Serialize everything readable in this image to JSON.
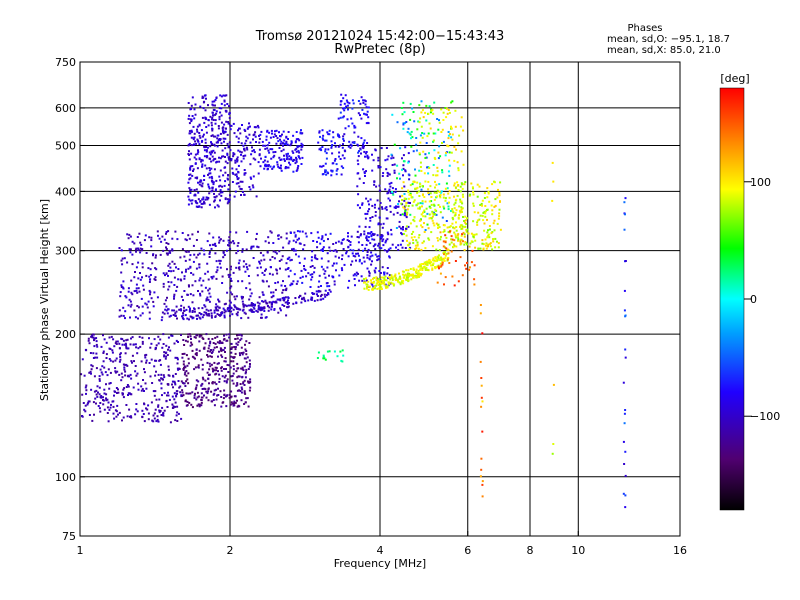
{
  "chart_data": {
    "type": "scatter",
    "title": "Tromsø 20121024 15:42:00−15:43:43",
    "subtitle": "RwPretec (8p)",
    "xlabel": "Frequency [MHz]",
    "ylabel": "Stationary phase Virtual Height [km]",
    "x_scale": "log",
    "y_scale": "log",
    "xlim": [
      1,
      16
    ],
    "ylim": [
      75,
      750
    ],
    "x_ticks": [
      1,
      2,
      4,
      6,
      8,
      10,
      16
    ],
    "x_tick_labels": [
      "1",
      "2",
      "4",
      "6",
      "8",
      "10",
      "16"
    ],
    "x_grid": [
      2,
      4,
      6,
      8,
      10
    ],
    "y_ticks": [
      75,
      100,
      200,
      300,
      400,
      500,
      600,
      750
    ],
    "y_tick_labels": [
      "75",
      "100",
      "200",
      "300",
      "400",
      "500",
      "600",
      "750"
    ],
    "y_grid": [
      100,
      200,
      300,
      400,
      500,
      600
    ],
    "grid": true,
    "colorbar": {
      "label": "[deg]",
      "range": [
        -180,
        180
      ],
      "ticks": [
        -100,
        0,
        100
      ],
      "tick_labels": [
        "−100",
        "0",
        "100"
      ],
      "colors": [
        "#000000",
        "#500070",
        "#2000ff",
        "#00a0ff",
        "#00ffff",
        "#00ff00",
        "#ffff00",
        "#ff8000",
        "#ff0000"
      ]
    },
    "stats_box": {
      "title": "Phases",
      "line1": "mean, sd,O: −95.1, 18.7",
      "line2": "mean, sd,X:  85.0, 21.0"
    },
    "series": [
      {
        "kind": "band",
        "x_range": [
          1.0,
          1.6
        ],
        "y_range": [
          130,
          200
        ],
        "count": 420,
        "phase": [
          -120,
          -100
        ]
      },
      {
        "kind": "band",
        "x_range": [
          1.6,
          2.2
        ],
        "y_range": [
          140,
          200
        ],
        "count": 380,
        "phase": [
          -140,
          -115
        ]
      },
      {
        "kind": "band",
        "x_range": [
          1.2,
          2.6
        ],
        "y_range": [
          215,
          330
        ],
        "count": 520,
        "phase": [
          -120,
          -90
        ]
      },
      {
        "kind": "trace",
        "x_from": 1.45,
        "x_to": 3.2,
        "y_from": 220,
        "y_to": 245,
        "spread": 6,
        "count": 220,
        "phase": [
          -115,
          -90
        ]
      },
      {
        "kind": "band",
        "x_range": [
          1.65,
          2.0
        ],
        "y_range": [
          370,
          640
        ],
        "count": 380,
        "phase": [
          -110,
          -85
        ]
      },
      {
        "kind": "band",
        "x_range": [
          2.0,
          2.3
        ],
        "y_range": [
          390,
          560
        ],
        "count": 120,
        "phase": [
          -110,
          -85
        ]
      },
      {
        "kind": "band",
        "x_range": [
          2.3,
          2.8
        ],
        "y_range": [
          440,
          540
        ],
        "count": 160,
        "phase": [
          -100,
          -70
        ]
      },
      {
        "kind": "band",
        "x_range": [
          3.0,
          3.4
        ],
        "y_range": [
          430,
          540
        ],
        "count": 70,
        "phase": [
          -90,
          -60
        ]
      },
      {
        "kind": "band",
        "x_range": [
          3.3,
          3.8
        ],
        "y_range": [
          480,
          640
        ],
        "count": 90,
        "phase": [
          -100,
          -60
        ]
      },
      {
        "kind": "band",
        "x_range": [
          2.6,
          4.2
        ],
        "y_range": [
          250,
          330
        ],
        "count": 260,
        "phase": [
          -105,
          -70
        ]
      },
      {
        "kind": "band",
        "x_range": [
          3.6,
          4.6
        ],
        "y_range": [
          300,
          500
        ],
        "count": 200,
        "phase": [
          -105,
          -80
        ]
      },
      {
        "kind": "band",
        "x_range": [
          4.2,
          5.6
        ],
        "y_range": [
          330,
          620
        ],
        "count": 140,
        "phase": [
          -60,
          60
        ]
      },
      {
        "kind": "trace",
        "x_from": 3.7,
        "x_to": 5.5,
        "y_from": 255,
        "y_to": 295,
        "spread": 8,
        "count": 260,
        "phase": [
          75,
          105
        ]
      },
      {
        "kind": "band",
        "x_range": [
          4.4,
          5.9
        ],
        "y_range": [
          300,
          420
        ],
        "count": 230,
        "phase": [
          70,
          110
        ]
      },
      {
        "kind": "band",
        "x_range": [
          5.6,
          7.0
        ],
        "y_range": [
          300,
          420
        ],
        "count": 170,
        "phase": [
          65,
          115
        ]
      },
      {
        "kind": "band",
        "x_range": [
          4.8,
          5.9
        ],
        "y_range": [
          430,
          600
        ],
        "count": 70,
        "phase": [
          80,
          115
        ]
      },
      {
        "kind": "band",
        "x_range": [
          5.2,
          6.2
        ],
        "y_range": [
          250,
          330
        ],
        "count": 45,
        "phase": [
          120,
          170
        ]
      },
      {
        "kind": "band",
        "x_range": [
          3.0,
          3.4
        ],
        "y_range": [
          175,
          185
        ],
        "count": 16,
        "phase": [
          5,
          40
        ]
      },
      {
        "kind": "column",
        "x": 6.4,
        "y_range": [
          90,
          240
        ],
        "count": 16,
        "phase": [
          100,
          180
        ]
      },
      {
        "kind": "column",
        "x": 8.9,
        "y_range": [
          110,
          480
        ],
        "count": 6,
        "phase": [
          60,
          120
        ]
      },
      {
        "kind": "column",
        "x": 12.4,
        "y_range": [
          85,
          430
        ],
        "count": 24,
        "phase": [
          -100,
          -40
        ]
      }
    ]
  }
}
